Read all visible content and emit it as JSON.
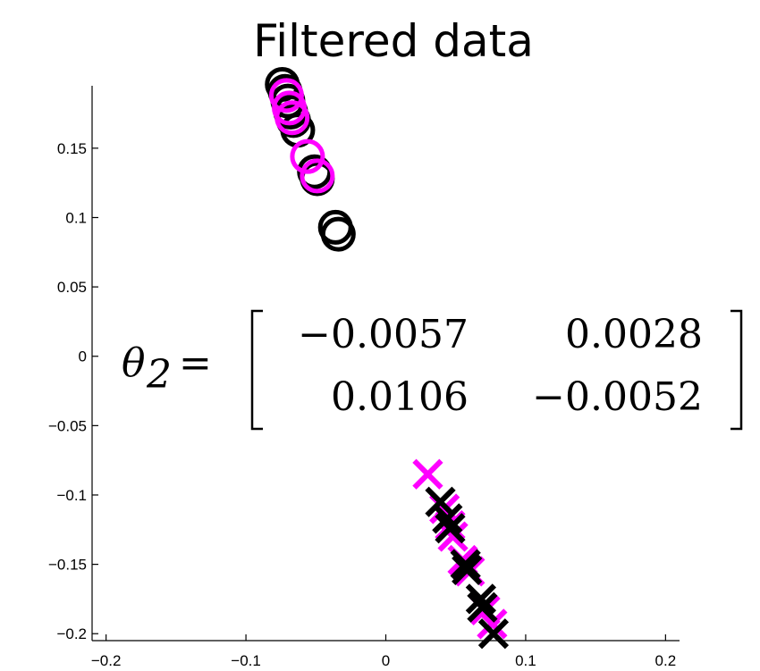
{
  "chart_data": {
    "type": "scatter",
    "title": "Filtered data",
    "xlabel": "",
    "ylabel": "",
    "xlim": [
      -0.21,
      0.21
    ],
    "ylim": [
      -0.205,
      0.195
    ],
    "xticks": [
      -0.2,
      -0.1,
      0,
      0.1,
      0.2
    ],
    "yticks": [
      -0.2,
      -0.15,
      -0.1,
      -0.05,
      0,
      0.05,
      0.1,
      0.15
    ],
    "xtick_labels": [
      "−0.2",
      "−0.1",
      "0",
      "0.1",
      "0.2"
    ],
    "ytick_labels": [
      "−0.2",
      "−0.15",
      "−0.1",
      "−0.05",
      "0",
      "0.05",
      "0.1",
      "0.15"
    ],
    "grid": false,
    "series": [
      {
        "marker": "circle",
        "color": "#000000",
        "points": [
          [
            -0.074,
            0.196
          ],
          [
            -0.072,
            0.191
          ],
          [
            -0.07,
            0.184
          ],
          [
            -0.068,
            0.176
          ],
          [
            -0.066,
            0.17
          ],
          [
            -0.063,
            0.163
          ],
          [
            -0.051,
            0.133
          ],
          [
            -0.049,
            0.128
          ],
          [
            -0.036,
            0.093
          ],
          [
            -0.034,
            0.088
          ]
        ]
      },
      {
        "marker": "circle",
        "color": "#ff00ff",
        "points": [
          [
            -0.071,
            0.188
          ],
          [
            -0.069,
            0.179
          ],
          [
            -0.067,
            0.172
          ],
          [
            -0.056,
            0.144
          ],
          [
            -0.049,
            0.13
          ]
        ]
      },
      {
        "marker": "x",
        "color": "#ff00ff",
        "points": [
          [
            0.03,
            -0.085
          ],
          [
            0.042,
            -0.11
          ],
          [
            0.046,
            -0.122
          ],
          [
            0.048,
            -0.13
          ],
          [
            0.055,
            -0.147
          ],
          [
            0.06,
            -0.155
          ],
          [
            0.071,
            -0.183
          ],
          [
            0.076,
            -0.193
          ]
        ]
      },
      {
        "marker": "x",
        "color": "#000000",
        "points": [
          [
            0.039,
            -0.105
          ],
          [
            0.044,
            -0.117
          ],
          [
            0.046,
            -0.124
          ],
          [
            0.057,
            -0.15
          ],
          [
            0.058,
            -0.154
          ],
          [
            0.068,
            -0.175
          ],
          [
            0.069,
            -0.181
          ],
          [
            0.077,
            -0.2
          ]
        ]
      }
    ],
    "annotation": {
      "symbol": "θ",
      "subscript": "2",
      "equals": "=",
      "matrix": [
        [
          "−0.0057",
          "0.0028"
        ],
        [
          "0.0106",
          "−0.0052"
        ]
      ]
    }
  }
}
